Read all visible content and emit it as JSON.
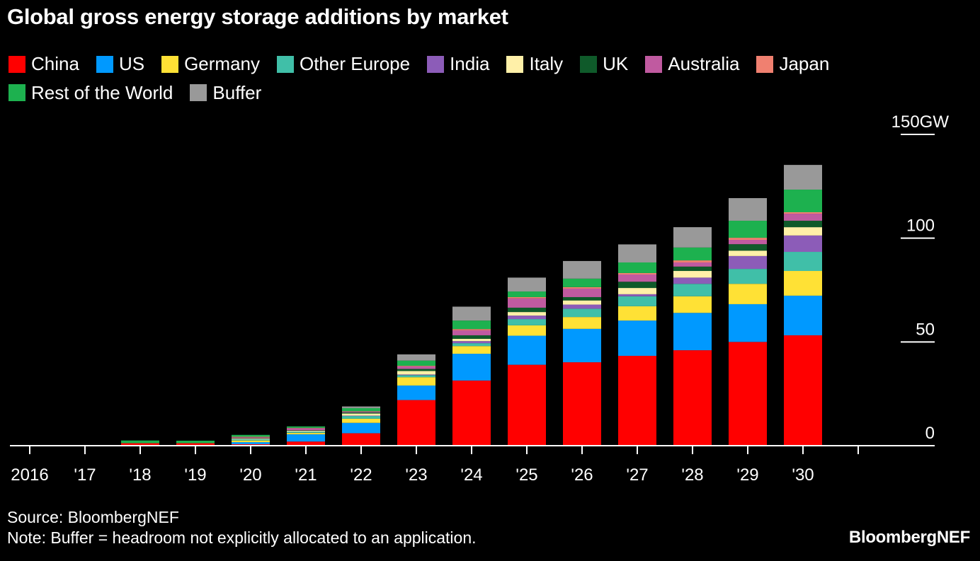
{
  "chart_data": {
    "type": "bar",
    "stacked": true,
    "title": "Global gross energy storage additions by market",
    "categories": [
      "2016",
      "'17",
      "'18",
      "'19",
      "'20",
      "'21",
      "'22",
      "'23",
      "'24",
      "'25",
      "'26",
      "'27",
      "'28",
      "'29",
      "'30"
    ],
    "y_unit": "GW",
    "ylim": [
      0,
      150
    ],
    "y_ticks": [
      "0",
      "50",
      "100",
      "150"
    ],
    "y_axis_side": "right",
    "grid": false,
    "legend_placement": "top",
    "series": [
      {
        "name": "China",
        "color": "#ff0000",
        "values": [
          0,
          0,
          1.2,
          1.2,
          0.7,
          2,
          6,
          22,
          31.4,
          39,
          40.2,
          43.3,
          46,
          50,
          53.2
        ]
      },
      {
        "name": "US",
        "color": "#0099ff",
        "values": [
          0,
          0,
          0,
          0,
          1,
          3.5,
          5,
          7,
          12.9,
          14,
          16.1,
          17,
          18,
          18.2,
          19.1
        ]
      },
      {
        "name": "Germany",
        "color": "#ffe135",
        "values": [
          0,
          0,
          0,
          0,
          0.8,
          0.7,
          2,
          4,
          3.7,
          5,
          5.7,
          6.9,
          8,
          9.8,
          11.9
        ]
      },
      {
        "name": "Other Europe",
        "color": "#40bfa8",
        "values": [
          0,
          0,
          0,
          0,
          0.6,
          0.6,
          1.3,
          1,
          1.4,
          3,
          4,
          4.8,
          6,
          7.2,
          9.2
        ]
      },
      {
        "name": "India",
        "color": "#8c5cb8",
        "values": [
          0,
          0,
          0,
          0,
          0,
          0,
          0.2,
          0.3,
          1,
          1.7,
          2,
          1,
          3,
          6.2,
          7.9
        ]
      },
      {
        "name": "Italy",
        "color": "#fff0a8",
        "values": [
          0,
          0,
          0,
          0,
          0.3,
          0.4,
          1,
          1.7,
          1.1,
          1.7,
          2,
          3,
          3.2,
          2.6,
          4
        ]
      },
      {
        "name": "UK",
        "color": "#0f5a2a",
        "values": [
          0,
          0,
          0,
          0,
          0.2,
          0.2,
          0.5,
          1,
          1.7,
          2.1,
          1.6,
          3,
          2.1,
          3.1,
          3.1
        ]
      },
      {
        "name": "Australia",
        "color": "#c05aa0",
        "values": [
          0,
          0,
          0,
          0,
          0.4,
          1,
          0.4,
          1.2,
          2.4,
          4.5,
          4.1,
          3.5,
          2,
          2.1,
          3.4
        ]
      },
      {
        "name": "Japan",
        "color": "#f08070",
        "values": [
          0,
          0,
          0,
          0,
          0.3,
          0.2,
          0.2,
          0.3,
          0.6,
          0.6,
          0.7,
          0.7,
          1,
          1,
          0.7
        ]
      },
      {
        "name": "Rest of the World",
        "color": "#1db14f",
        "values": [
          0,
          0,
          1.3,
          1.2,
          0.9,
          0.7,
          1.5,
          2.5,
          4.1,
          2.7,
          4.1,
          5.1,
          6.2,
          8.2,
          10.9
        ]
      },
      {
        "name": "Buffer",
        "color": "#999999",
        "values": [
          0,
          0,
          0,
          0,
          0,
          0,
          0.8,
          3,
          6.7,
          6.7,
          8.5,
          8.7,
          9.8,
          10.9,
          11.9
        ]
      }
    ]
  },
  "footer": {
    "source": "Source: BloombergNEF",
    "note": "Note: Buffer = headroom not explicitly allocated to an application.",
    "brand": "BloombergNEF"
  }
}
